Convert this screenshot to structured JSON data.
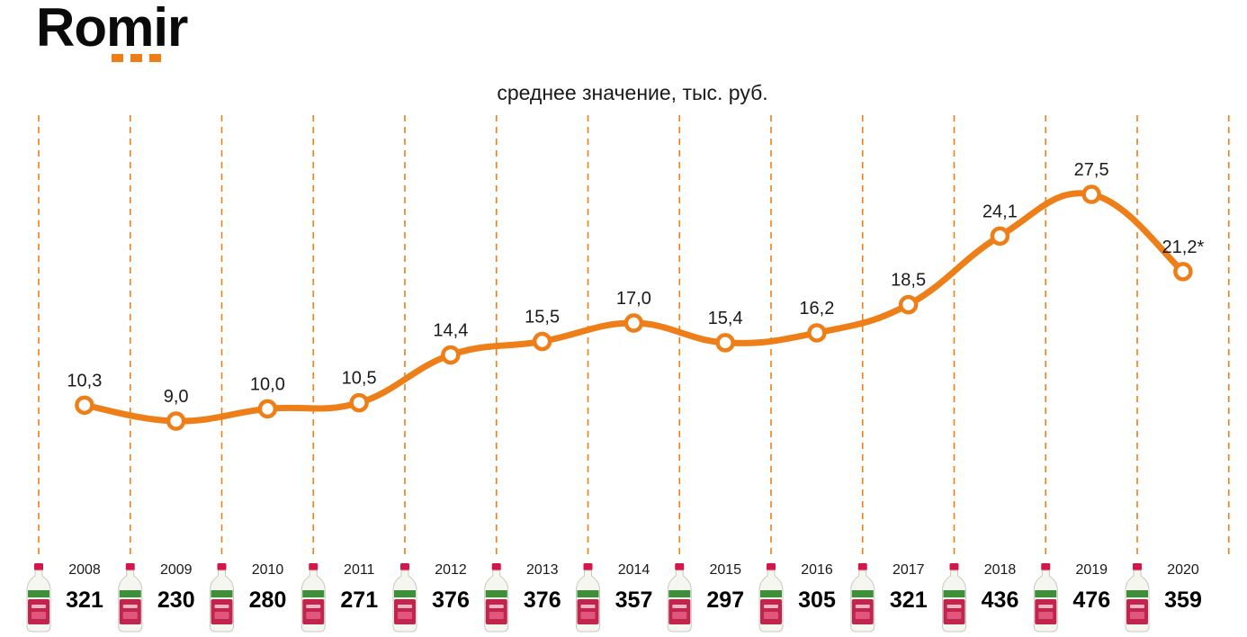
{
  "brand": {
    "name": "Romir",
    "accent": "#ee7e17"
  },
  "chart_data": {
    "type": "line",
    "title": "среднее значение, тыс. руб.",
    "categories": [
      "2008",
      "2009",
      "2010",
      "2011",
      "2012",
      "2013",
      "2014",
      "2015",
      "2016",
      "2017",
      "2018",
      "2019",
      "2020"
    ],
    "values": [
      10.3,
      9.0,
      10.0,
      10.5,
      14.4,
      15.5,
      17.0,
      15.4,
      16.2,
      18.5,
      24.1,
      27.5,
      21.2
    ],
    "data_labels": [
      "10,3",
      "9,0",
      "10,0",
      "10,5",
      "14,4",
      "15,5",
      "17,0",
      "15,4",
      "16,2",
      "18,5",
      "24,1",
      "27,5",
      "21,2*"
    ],
    "secondary_values": [
      321,
      230,
      280,
      271,
      376,
      376,
      357,
      297,
      305,
      321,
      436,
      476,
      359
    ],
    "grid": "vertical dashed separators between years",
    "line_color": "#ee7e17",
    "icon": "milk-bottle-icon"
  }
}
